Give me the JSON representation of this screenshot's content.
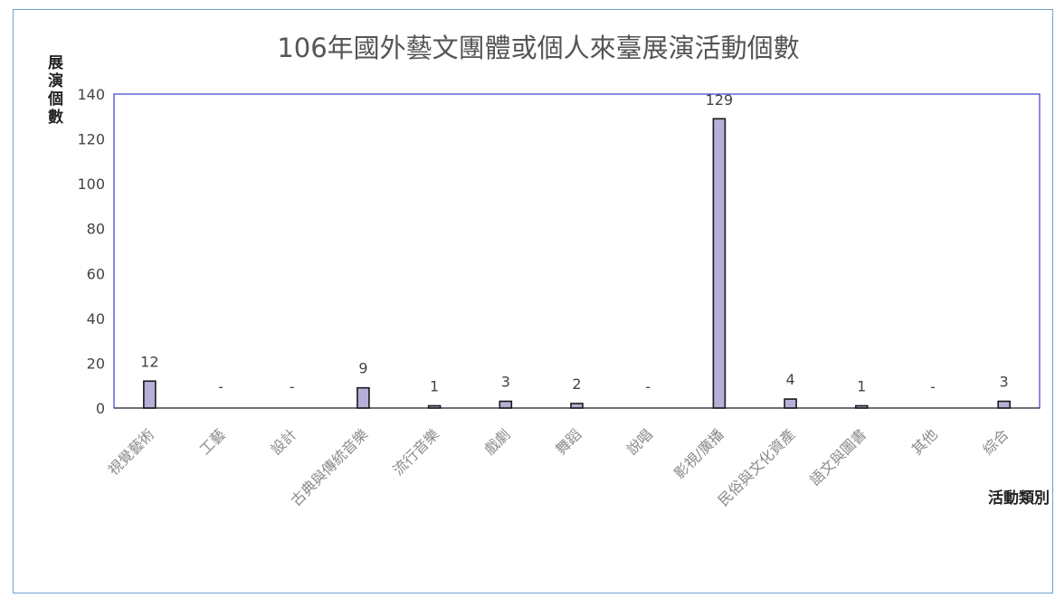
{
  "chart_data": {
    "type": "bar",
    "title": "106年國外藝文團體或個人來臺展演活動個數",
    "ylabel": "展演個數",
    "xlabel": "活動類別",
    "ylim": [
      0,
      140
    ],
    "yticks": [
      0,
      20,
      40,
      60,
      80,
      100,
      120,
      140
    ],
    "grid": false,
    "categories": [
      "視覺藝術",
      "工藝",
      "設計",
      "古典與傳統音樂",
      "流行音樂",
      "戲劇",
      "舞蹈",
      "說唱",
      "影視/廣播",
      "民俗與文化資產",
      "語文與圖書",
      "其他",
      "綜合"
    ],
    "values": [
      12,
      0,
      0,
      9,
      1,
      3,
      2,
      0,
      129,
      4,
      1,
      0,
      3
    ],
    "data_labels": [
      "12",
      "-",
      "-",
      "9",
      "1",
      "3",
      "2",
      "-",
      "129",
      "4",
      "1",
      "-",
      "3"
    ],
    "colors": {
      "bar_fill": "#b4b0d8",
      "bar_stroke": "#1a1a1a",
      "plot_border": "#3c3cd0",
      "axis": "#333333"
    }
  }
}
